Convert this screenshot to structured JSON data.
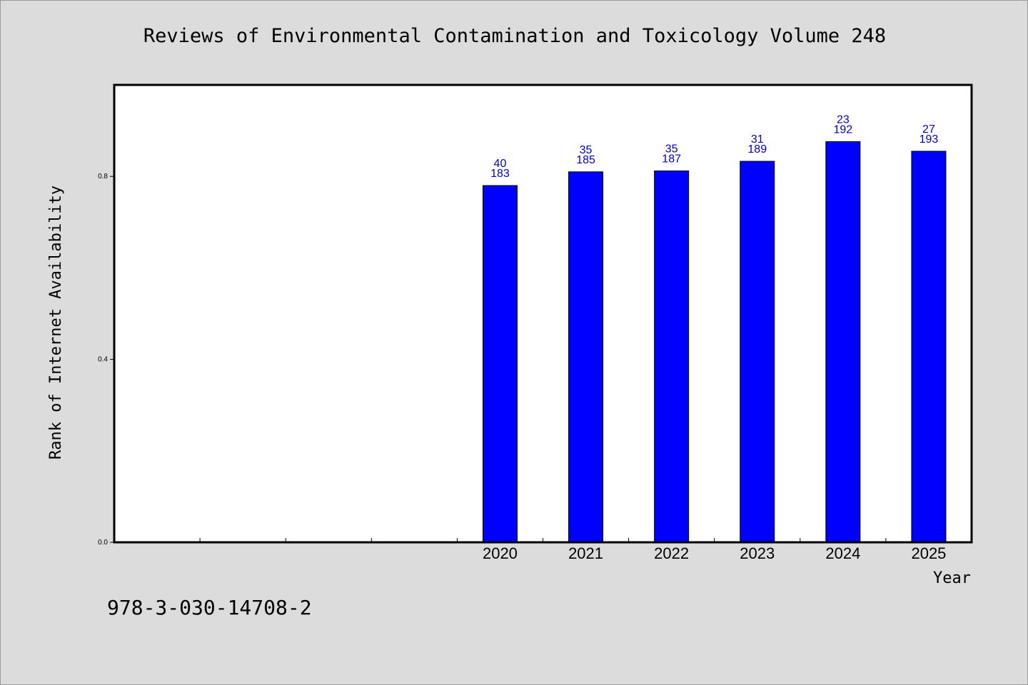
{
  "chart_data": {
    "type": "bar",
    "title": "Reviews of Environmental Contamination and Toxicology Volume 248",
    "xlabel": "Year",
    "ylabel": "Rank of Internet Availability",
    "categories": [
      "2020",
      "2021",
      "2022",
      "2023",
      "2024",
      "2025"
    ],
    "values": [
      0.78,
      0.81,
      0.812,
      0.833,
      0.876,
      0.855
    ],
    "label_top": [
      "40",
      "35",
      "35",
      "31",
      "23",
      "27"
    ],
    "label_bottom": [
      "183",
      "185",
      "187",
      "189",
      "192",
      "193"
    ],
    "empty_slots_before": 4,
    "yticks": [
      "0.0",
      "0.4",
      "0.8"
    ],
    "ylim": [
      0,
      1.0
    ],
    "grid": false,
    "legend": "none",
    "bar_color": "#0000ff",
    "label_color": "#0000cc",
    "plot_background": "#ffffff",
    "page_background": "#dcdcdc"
  },
  "footer": {
    "isbn": "978-3-030-14708-2"
  }
}
